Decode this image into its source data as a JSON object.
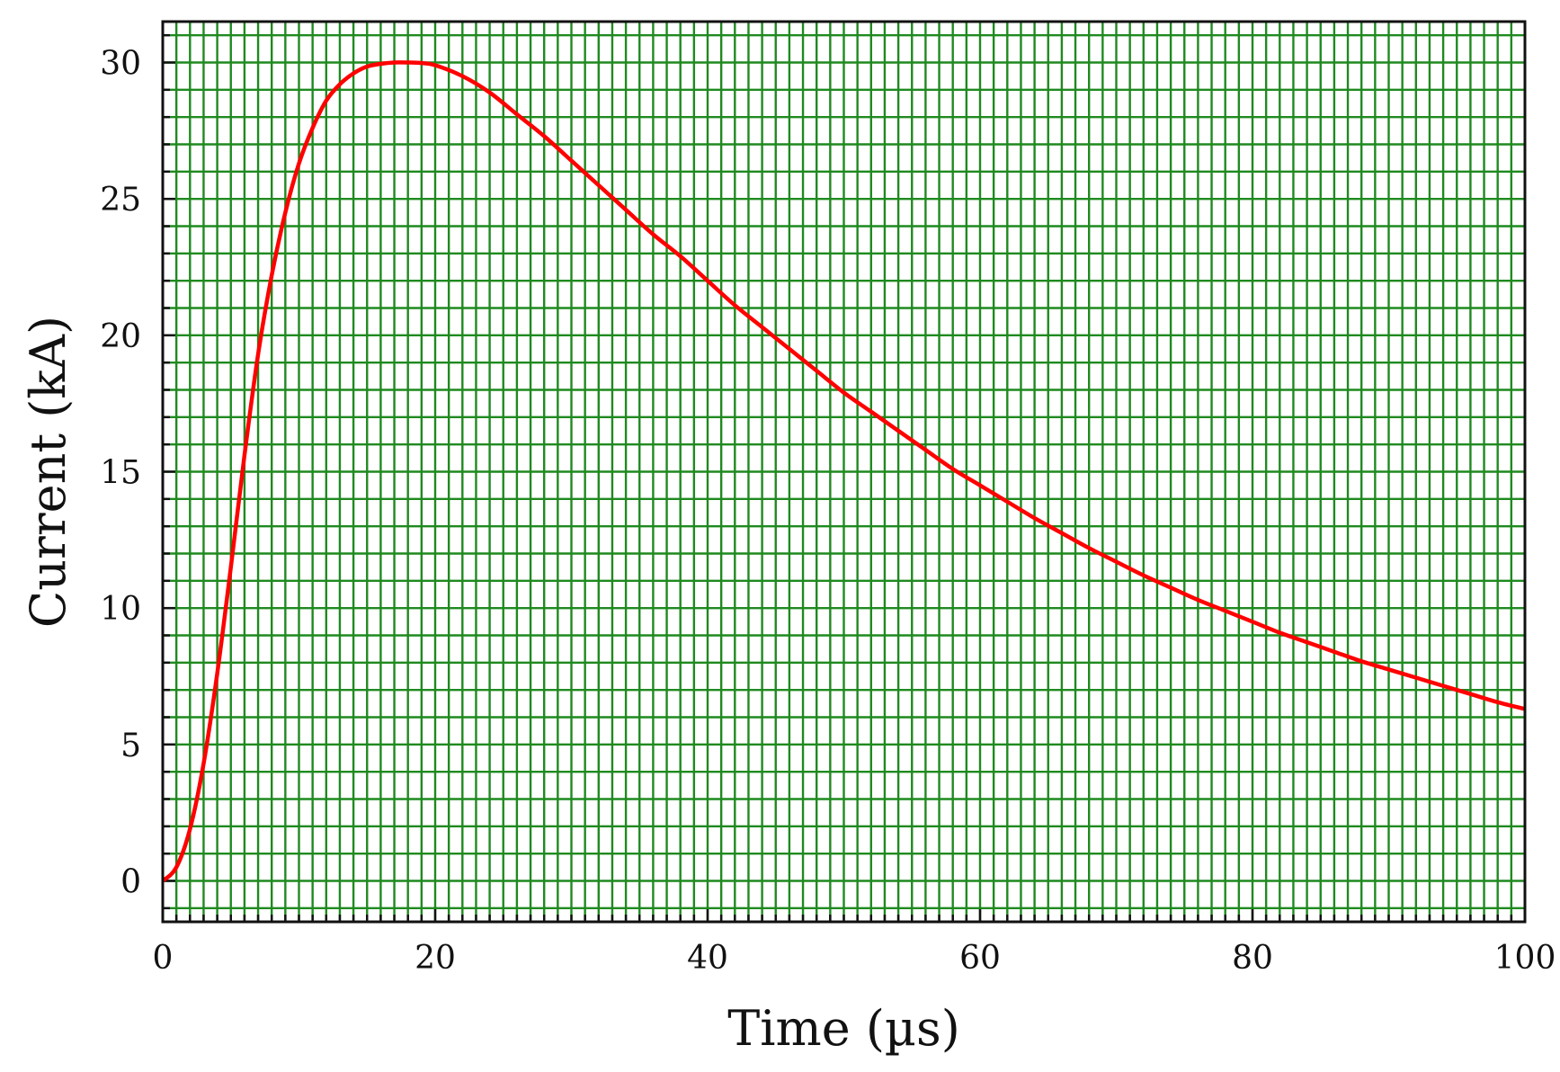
{
  "chart_data": {
    "type": "line",
    "title": "",
    "xlabel": "Time (µs)",
    "ylabel": "Current (kA)",
    "xlim": [
      0,
      100
    ],
    "ylim": [
      -1.5,
      31.5
    ],
    "xticks": [
      0,
      20,
      40,
      60,
      80,
      100
    ],
    "xtick_labels": [
      "0",
      "20",
      "40",
      "60",
      "80",
      "100"
    ],
    "yticks": [
      0,
      5,
      10,
      15,
      20,
      25,
      30
    ],
    "ytick_labels": [
      "0",
      "5",
      "10",
      "15",
      "20",
      "25",
      "30"
    ],
    "x_minor_step": 1,
    "y_minor_step": 1,
    "grid": true,
    "grid_color": "#1f8a1f",
    "line_color": "#ff0000",
    "series": [
      {
        "name": "Current",
        "x": [
          0,
          1,
          2,
          3,
          4,
          5,
          6,
          7,
          8,
          9,
          10,
          11,
          12,
          13,
          14,
          15,
          16,
          17,
          18,
          19,
          20,
          22,
          24,
          26,
          28,
          30,
          32,
          34,
          36,
          38,
          40,
          42,
          44,
          46,
          48,
          50,
          52,
          54,
          56,
          58,
          60,
          62,
          64,
          66,
          68,
          70,
          72,
          74,
          76,
          78,
          80,
          82,
          84,
          86,
          88,
          90,
          92,
          94,
          96,
          98,
          100
        ],
        "y": [
          0,
          0.5,
          1.9,
          4.3,
          7.6,
          11.5,
          15.6,
          19.3,
          22.2,
          24.5,
          26.3,
          27.6,
          28.6,
          29.2,
          29.6,
          29.85,
          29.95,
          30.0,
          30.0,
          29.98,
          29.9,
          29.5,
          28.9,
          28.1,
          27.3,
          26.4,
          25.5,
          24.6,
          23.7,
          22.9,
          22.0,
          21.1,
          20.3,
          19.5,
          18.7,
          17.9,
          17.2,
          16.5,
          15.8,
          15.1,
          14.5,
          13.9,
          13.3,
          12.75,
          12.2,
          11.7,
          11.2,
          10.75,
          10.3,
          9.9,
          9.5,
          9.1,
          8.75,
          8.4,
          8.05,
          7.75,
          7.45,
          7.15,
          6.85,
          6.55,
          6.3
        ]
      }
    ]
  }
}
